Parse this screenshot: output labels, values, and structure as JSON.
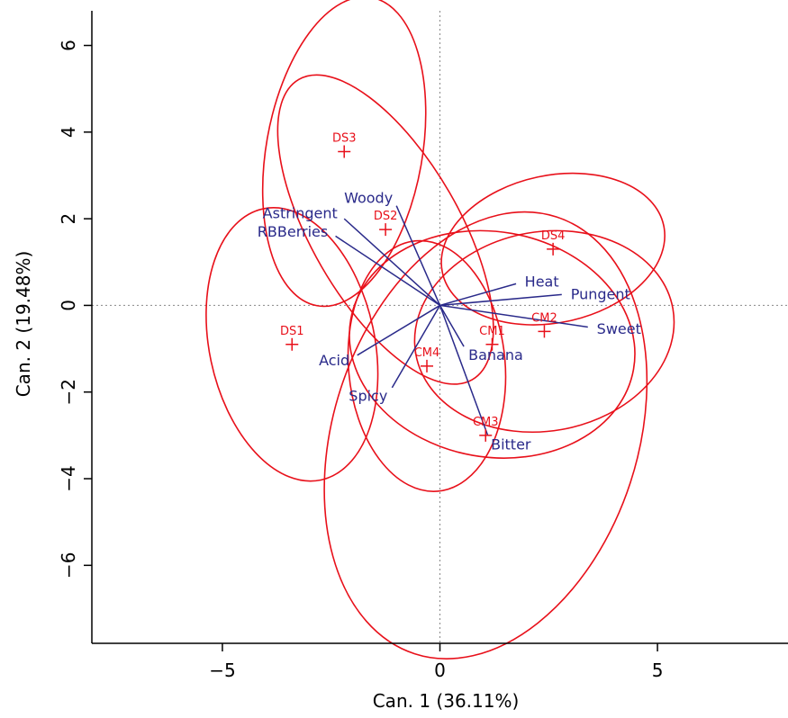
{
  "chart_data": {
    "type": "scatter",
    "title": "",
    "xlabel": "Can. 1 (36.11%)",
    "ylabel": "Can. 2 (19.48%)",
    "xlim": [
      -8,
      8
    ],
    "ylim": [
      -7.8,
      6.8
    ],
    "xticks": [
      -5,
      0,
      5
    ],
    "yticks": [
      -6,
      -4,
      -2,
      0,
      2,
      4,
      6
    ],
    "grid": false,
    "reference_lines": [
      {
        "axis": "x",
        "value": 0
      },
      {
        "axis": "y",
        "value": 0
      }
    ],
    "colors": {
      "groups": "#e8101a",
      "attributes": "#2a2a8a",
      "reference": "#888888",
      "axes": "#000000"
    },
    "groups": [
      {
        "label": "DS1",
        "x": -3.4,
        "y": -0.9,
        "ellipse": {
          "rx": 1.9,
          "ry": 3.2,
          "angle": 12
        }
      },
      {
        "label": "DS2",
        "x": -1.25,
        "y": 1.75,
        "ellipse": {
          "rx": 1.7,
          "ry": 4.0,
          "angle": 30
        }
      },
      {
        "label": "DS3",
        "x": -2.2,
        "y": 3.55,
        "ellipse": {
          "rx": 3.6,
          "ry": 1.8,
          "angle": 80
        }
      },
      {
        "label": "DS4",
        "x": 2.6,
        "y": 1.3,
        "ellipse": {
          "rx": 2.6,
          "ry": 1.7,
          "angle": 12
        }
      },
      {
        "label": "CM1",
        "x": 1.2,
        "y": -0.9,
        "ellipse": {
          "rx": 3.3,
          "ry": 2.6,
          "angle": -10
        }
      },
      {
        "label": "CM2",
        "x": 2.4,
        "y": -0.6,
        "ellipse": {
          "rx": 3.0,
          "ry": 2.3,
          "angle": 10
        }
      },
      {
        "label": "CM3",
        "x": 1.05,
        "y": -3.0,
        "ellipse": {
          "rx": 3.5,
          "ry": 5.3,
          "angle": -18
        }
      },
      {
        "label": "CM4",
        "x": -0.3,
        "y": -1.4,
        "ellipse": {
          "rx": 1.8,
          "ry": 2.9,
          "angle": 5
        }
      }
    ],
    "attributes": [
      {
        "label": "Astringent",
        "x": -2.2,
        "y": 2.0
      },
      {
        "label": "RBBerries",
        "x": -2.4,
        "y": 1.6
      },
      {
        "label": "Woody",
        "x": -1.0,
        "y": 2.3
      },
      {
        "label": "Heat",
        "x": 1.75,
        "y": 0.5
      },
      {
        "label": "Pungent",
        "x": 2.8,
        "y": 0.25
      },
      {
        "label": "Sweet",
        "x": 3.4,
        "y": -0.5
      },
      {
        "label": "Banana",
        "x": 0.55,
        "y": -0.95
      },
      {
        "label": "Acid",
        "x": -1.9,
        "y": -1.15
      },
      {
        "label": "Spicy",
        "x": -1.1,
        "y": -1.9
      },
      {
        "label": "Bitter",
        "x": 1.1,
        "y": -3.0
      }
    ]
  }
}
